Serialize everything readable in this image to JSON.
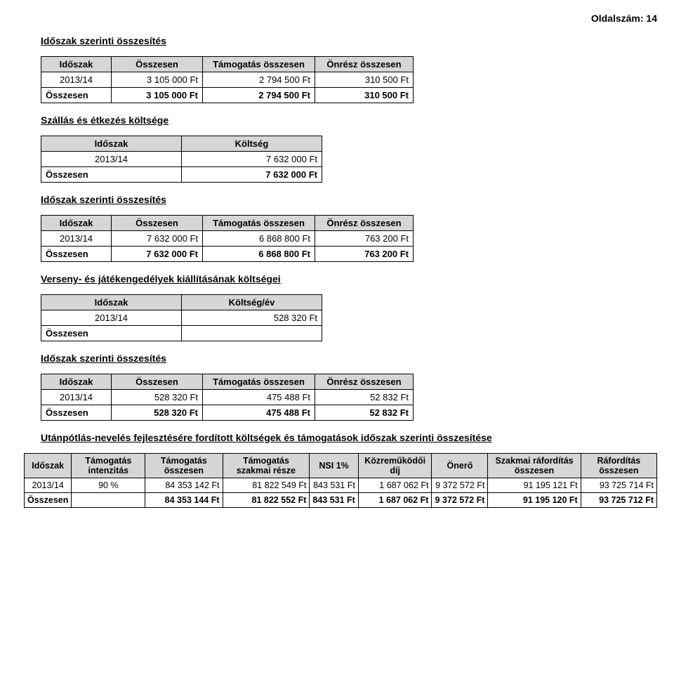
{
  "page_number": "Oldalszám: 14",
  "sections": {
    "s1": {
      "title": "Időszak szerinti összesítés",
      "table": {
        "headers": [
          "Időszak",
          "Összesen",
          "Támogatás összesen",
          "Önrész összesen"
        ],
        "row": {
          "period": "2013/14",
          "total": "3 105 000 Ft",
          "support": "2 794 500 Ft",
          "own": "310 500 Ft"
        },
        "sum": {
          "label": "Összesen",
          "total": "3 105 000 Ft",
          "support": "2 794 500 Ft",
          "own": "310 500 Ft"
        }
      }
    },
    "s2": {
      "title": "Szállás és étkezés költsége",
      "table": {
        "headers": [
          "Időszak",
          "Költség"
        ],
        "row": {
          "period": "2013/14",
          "cost": "7 632 000 Ft"
        },
        "sum": {
          "label": "Összesen",
          "cost": "7 632 000 Ft"
        }
      }
    },
    "s3": {
      "title": "Időszak szerinti összesítés",
      "table": {
        "headers": [
          "Időszak",
          "Összesen",
          "Támogatás összesen",
          "Önrész összesen"
        ],
        "row": {
          "period": "2013/14",
          "total": "7 632 000 Ft",
          "support": "6 868 800 Ft",
          "own": "763 200 Ft"
        },
        "sum": {
          "label": "Összesen",
          "total": "7 632 000 Ft",
          "support": "6 868 800 Ft",
          "own": "763 200 Ft"
        }
      }
    },
    "s4": {
      "title": "Verseny- és játékengedélyek kiállításának költségei",
      "table": {
        "headers": [
          "Időszak",
          "Költség/év"
        ],
        "row": {
          "period": "2013/14",
          "cost": "528 320 Ft"
        },
        "sum": {
          "label": "Összesen",
          "cost": ""
        }
      }
    },
    "s5": {
      "title": "Időszak szerinti összesítés",
      "table": {
        "headers": [
          "Időszak",
          "Összesen",
          "Támogatás összesen",
          "Önrész összesen"
        ],
        "row": {
          "period": "2013/14",
          "total": "528 320 Ft",
          "support": "475 488 Ft",
          "own": "52 832 Ft"
        },
        "sum": {
          "label": "Összesen",
          "total": "528 320 Ft",
          "support": "475 488 Ft",
          "own": "52 832 Ft"
        }
      }
    },
    "s6": {
      "title": "Utánpótlás-nevelés fejlesztésére fordított költségek és támogatások időszak szerinti összesítése",
      "table": {
        "headers": [
          "Időszak",
          "Támogatás intenzitás",
          "Támogatás összesen",
          "Támogatás szakmai része",
          "NSI 1%",
          "Közreműködői díj",
          "Önerő",
          "Szakmai ráfordítás összesen",
          "Ráfordítás összesen"
        ],
        "row": {
          "period": "2013/14",
          "intensity": "90 %",
          "support_total": "84 353 142 Ft",
          "support_pro": "81 822 549 Ft",
          "nsi": "843 531 Ft",
          "coop": "1 687 062 Ft",
          "own": "9 372 572 Ft",
          "pro_exp": "91 195 121 Ft",
          "exp_total": "93 725 714 Ft"
        },
        "sum": {
          "label": "Összesen",
          "intensity": "",
          "support_total": "84 353 144 Ft",
          "support_pro": "81 822 552 Ft",
          "nsi": "843 531 Ft",
          "coop": "1 687 062 Ft",
          "own": "9 372 572 Ft",
          "pro_exp": "91 195 120 Ft",
          "exp_total": "93 725 712 Ft"
        }
      }
    }
  },
  "colors": {
    "header_bg": "#d6d6d6",
    "border": "#000000",
    "text": "#000000",
    "background": "#ffffff"
  }
}
